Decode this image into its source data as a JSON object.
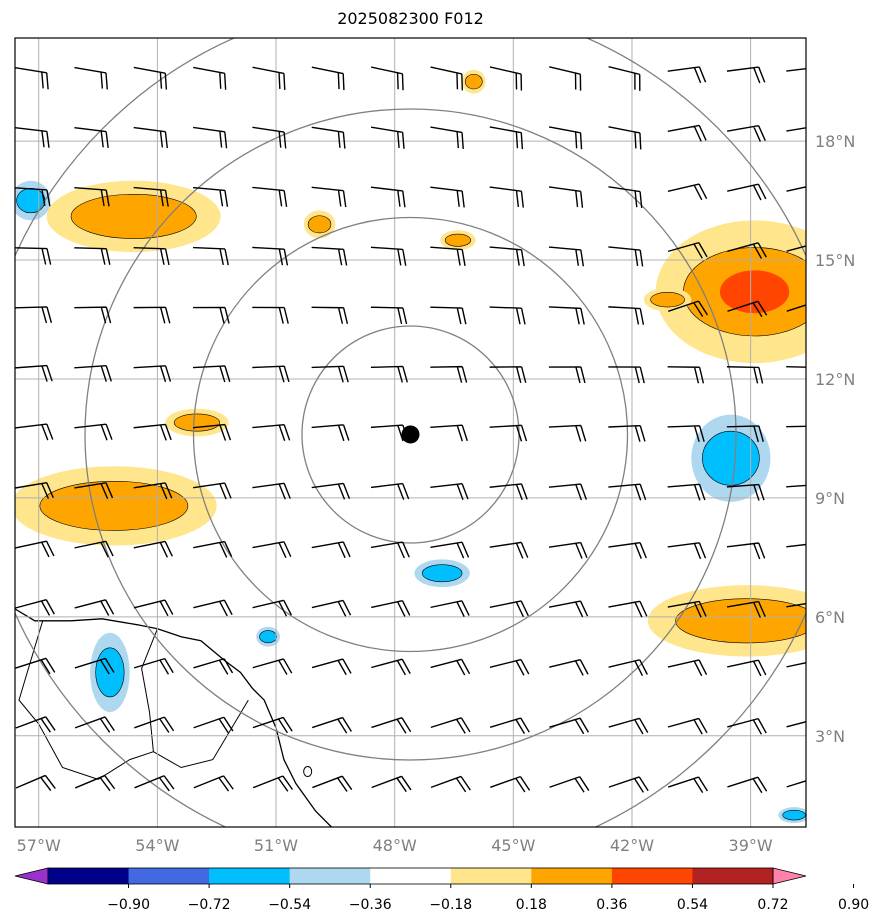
{
  "title": "2025082300 F012",
  "chart_data": {
    "type": "contourf-map",
    "title": "2025082300 F012",
    "lon_range": [
      -57.6,
      -37.6
    ],
    "lat_range": [
      0.7,
      20.6
    ],
    "lon_ticks": [
      "57°W",
      "54°W",
      "51°W",
      "48°W",
      "45°W",
      "42°W",
      "39°W"
    ],
    "lat_ticks": [
      "3°N",
      "6°N",
      "9°N",
      "12°N",
      "15°N",
      "18°N"
    ],
    "grid": true,
    "center": {
      "lon": -47.6,
      "lat": 10.6
    },
    "range_rings": 4,
    "colorbar": {
      "levels": [
        "−0.90",
        "−0.72",
        "−0.54",
        "−0.36",
        "−0.18",
        "0.18",
        "0.36",
        "0.54",
        "0.72",
        "0.90"
      ],
      "colors": [
        "#9932cc",
        "#00008b",
        "#4169e1",
        "#00bfff",
        "#add8f0",
        "#ffffff",
        "#ffe68c",
        "#ffa500",
        "#ff4500",
        "#b22222",
        "#ff82ab"
      ]
    },
    "regions": [
      {
        "type": "positive",
        "lon": -54.6,
        "lat": 16.1,
        "rx": 2.2,
        "ry": 0.9
      },
      {
        "type": "positive",
        "lon": -49.9,
        "lat": 15.9,
        "rx": 0.4,
        "ry": 0.35
      },
      {
        "type": "positive",
        "lon": -46.4,
        "lat": 15.5,
        "rx": 0.45,
        "ry": 0.25
      },
      {
        "type": "positive",
        "lon": -46.0,
        "lat": 19.5,
        "rx": 0.3,
        "ry": 0.3
      },
      {
        "type": "positive",
        "lon": -38.9,
        "lat": 14.2,
        "rx": 2.5,
        "ry": 1.8
      },
      {
        "type": "positive",
        "lon": -41.1,
        "lat": 14.0,
        "rx": 0.6,
        "ry": 0.3
      },
      {
        "type": "positive",
        "lon": -53.0,
        "lat": 10.9,
        "rx": 0.8,
        "ry": 0.35
      },
      {
        "type": "positive",
        "lon": -55.1,
        "lat": 8.8,
        "rx": 2.6,
        "ry": 1.0
      },
      {
        "type": "positive",
        "lon": -39.1,
        "lat": 5.9,
        "rx": 2.5,
        "ry": 0.9
      },
      {
        "type": "negative",
        "lon": -46.8,
        "lat": 7.1,
        "rx": 0.7,
        "ry": 0.35
      },
      {
        "type": "negative",
        "lon": -51.2,
        "lat": 5.5,
        "rx": 0.3,
        "ry": 0.25
      },
      {
        "type": "negative",
        "lon": -55.2,
        "lat": 4.6,
        "rx": 0.5,
        "ry": 1.0
      },
      {
        "type": "negative",
        "lon": -39.5,
        "lat": 10.0,
        "rx": 1.0,
        "ry": 1.1
      },
      {
        "type": "negative",
        "lon": -57.2,
        "lat": 16.5,
        "rx": 0.5,
        "ry": 0.5
      },
      {
        "type": "negative",
        "lon": -37.9,
        "lat": 1.0,
        "rx": 0.4,
        "ry": 0.2
      }
    ],
    "wind_barbs": "regular grid, ~1.5° spacing, easterly 15–25 kt"
  }
}
